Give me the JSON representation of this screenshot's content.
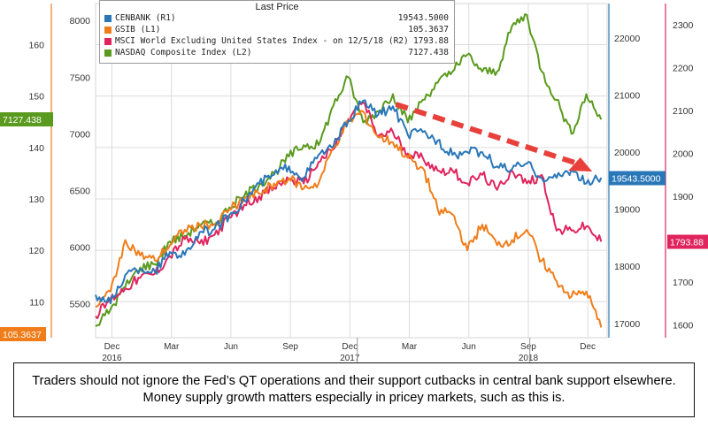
{
  "chart_data": {
    "type": "line",
    "legend_title": "Last Price",
    "legend_position": "top-left",
    "grid": true,
    "x_ticks": [
      {
        "month": "Dec",
        "year": "2016"
      },
      {
        "month": "Mar",
        "year": ""
      },
      {
        "month": "Jun",
        "year": ""
      },
      {
        "month": "Sep",
        "year": ""
      },
      {
        "month": "Dec",
        "year": "2017"
      },
      {
        "month": "Mar",
        "year": ""
      },
      {
        "month": "Jun",
        "year": ""
      },
      {
        "month": "Sep",
        "year": "2018"
      },
      {
        "month": "Dec",
        "year": ""
      }
    ],
    "axes": {
      "gsib_left": {
        "ticks": [
          "160",
          "150",
          "140",
          "130",
          "120",
          "110"
        ],
        "color": "#f07d1a",
        "ylim": [
          103,
          168
        ]
      },
      "nasdaq_left": {
        "ticks": [
          "8000",
          "7500",
          "7000",
          "6500",
          "6000",
          "5500"
        ],
        "color": "#111111",
        "ylim": [
          5200,
          8150
        ]
      },
      "cenbank_right": {
        "ticks": [
          "22000",
          "21000",
          "20000",
          "19000",
          "18000",
          "17000"
        ],
        "color": "#2a77b8",
        "ylim": [
          16750,
          22600
        ]
      },
      "msci_right": {
        "ticks": [
          "2300",
          "2200",
          "2100",
          "2000",
          "1900",
          "1800",
          "1700",
          "1600"
        ],
        "color": "#e0245e",
        "ylim": [
          1570,
          2350
        ]
      }
    },
    "series": [
      {
        "name": "CENBANK",
        "axis": "(R1)",
        "last": "19543.5000",
        "color": "#2a77b8",
        "points": [
          [
            0,
            17500
          ],
          [
            0.5,
            17350
          ],
          [
            1,
            17850
          ],
          [
            1.5,
            17950
          ],
          [
            2,
            17900
          ],
          [
            2.5,
            18250
          ],
          [
            3,
            18200
          ],
          [
            3.5,
            18600
          ],
          [
            4,
            18650
          ],
          [
            4.5,
            18900
          ],
          [
            5,
            19150
          ],
          [
            5.5,
            19450
          ],
          [
            6,
            19600
          ],
          [
            6.5,
            19750
          ],
          [
            7,
            19550
          ],
          [
            7.5,
            19950
          ],
          [
            8,
            20100
          ],
          [
            8.5,
            20550
          ],
          [
            9,
            20900
          ],
          [
            9.5,
            20650
          ],
          [
            10,
            20800
          ],
          [
            10.5,
            20300
          ],
          [
            11,
            20350
          ],
          [
            11.5,
            20200
          ],
          [
            12,
            19950
          ],
          [
            12.5,
            20000
          ],
          [
            13,
            20000
          ],
          [
            13.5,
            19750
          ],
          [
            14,
            19700
          ],
          [
            14.5,
            19800
          ],
          [
            15,
            19550
          ],
          [
            15.5,
            19550
          ],
          [
            16,
            19700
          ],
          [
            16.5,
            19450
          ],
          [
            17,
            19550
          ]
        ]
      },
      {
        "name": "GSIB",
        "axis": "(L1)",
        "last": "105.3637",
        "color": "#f07d1a",
        "points": [
          [
            0,
            109
          ],
          [
            0.5,
            112
          ],
          [
            1,
            122
          ],
          [
            1.5,
            119
          ],
          [
            2,
            118
          ],
          [
            2.5,
            121
          ],
          [
            3,
            124
          ],
          [
            3.5,
            125
          ],
          [
            4,
            125
          ],
          [
            4.5,
            128
          ],
          [
            5,
            130
          ],
          [
            5.5,
            131
          ],
          [
            6,
            133
          ],
          [
            6.5,
            134
          ],
          [
            7,
            132
          ],
          [
            7.5,
            133
          ],
          [
            8,
            140
          ],
          [
            8.5,
            145
          ],
          [
            9,
            147
          ],
          [
            9.5,
            142
          ],
          [
            10,
            141
          ],
          [
            10.5,
            138
          ],
          [
            11,
            136
          ],
          [
            11.5,
            128
          ],
          [
            12,
            127
          ],
          [
            12.5,
            120
          ],
          [
            13,
            125
          ],
          [
            13.5,
            121
          ],
          [
            14,
            122
          ],
          [
            14.5,
            124
          ],
          [
            15,
            118
          ],
          [
            15.5,
            114
          ],
          [
            16,
            111
          ],
          [
            16.5,
            112
          ],
          [
            17,
            105
          ]
        ]
      },
      {
        "name": "MSCI World Excluding United States Index - on 12/5/18",
        "axis": "(R2)",
        "last": "1793.88",
        "color": "#e0245e",
        "points": [
          [
            0,
            1620
          ],
          [
            0.5,
            1660
          ],
          [
            1,
            1685
          ],
          [
            1.5,
            1710
          ],
          [
            2,
            1720
          ],
          [
            2.5,
            1760
          ],
          [
            3,
            1800
          ],
          [
            3.5,
            1790
          ],
          [
            4,
            1810
          ],
          [
            4.5,
            1850
          ],
          [
            5,
            1880
          ],
          [
            5.5,
            1900
          ],
          [
            6,
            1920
          ],
          [
            6.5,
            1940
          ],
          [
            7,
            1930
          ],
          [
            7.5,
            1980
          ],
          [
            8,
            2010
          ],
          [
            8.5,
            2080
          ],
          [
            9,
            2120
          ],
          [
            9.5,
            2040
          ],
          [
            10,
            2050
          ],
          [
            10.5,
            2000
          ],
          [
            11,
            1990
          ],
          [
            11.5,
            1960
          ],
          [
            12,
            1960
          ],
          [
            12.5,
            1930
          ],
          [
            13,
            1950
          ],
          [
            13.5,
            1915
          ],
          [
            14,
            1960
          ],
          [
            14.5,
            1930
          ],
          [
            15,
            1950
          ],
          [
            15.5,
            1820
          ],
          [
            16,
            1820
          ],
          [
            16.5,
            1830
          ],
          [
            17,
            1794
          ]
        ]
      },
      {
        "name": "NASDAQ Composite Index",
        "axis": "(L2)",
        "last": "7127.438",
        "color": "#5a9a1e",
        "points": [
          [
            0,
            5300
          ],
          [
            0.5,
            5450
          ],
          [
            1,
            5650
          ],
          [
            1.5,
            5820
          ],
          [
            2,
            5850
          ],
          [
            2.5,
            6050
          ],
          [
            3,
            6100
          ],
          [
            3.5,
            6200
          ],
          [
            4,
            6200
          ],
          [
            4.5,
            6350
          ],
          [
            5,
            6450
          ],
          [
            5.5,
            6550
          ],
          [
            6,
            6650
          ],
          [
            6.5,
            6800
          ],
          [
            7,
            6900
          ],
          [
            7.5,
            6900
          ],
          [
            8,
            7250
          ],
          [
            8.5,
            7500
          ],
          [
            9,
            7100
          ],
          [
            9.5,
            7200
          ],
          [
            10,
            7350
          ],
          [
            10.5,
            7100
          ],
          [
            11,
            7300
          ],
          [
            11.5,
            7450
          ],
          [
            12,
            7550
          ],
          [
            12.5,
            7700
          ],
          [
            13,
            7550
          ],
          [
            13.5,
            7550
          ],
          [
            14,
            7950
          ],
          [
            14.5,
            8050
          ],
          [
            15,
            7550
          ],
          [
            15.5,
            7300
          ],
          [
            16,
            7000
          ],
          [
            16.5,
            7350
          ],
          [
            17,
            7127
          ]
        ]
      }
    ]
  },
  "legend": {
    "title": "Last Price",
    "rows": [
      {
        "name": "CENBANK (R1)",
        "value": "19543.5000",
        "color": "#2a77b8"
      },
      {
        "name": "GSIB (L1)",
        "value": "105.3637",
        "color": "#f07d1a"
      },
      {
        "name": "MSCI World Excluding United States Index - on 12/5/18 (R2)",
        "value": "1793.88",
        "color": "#e0245e"
      },
      {
        "name": "NASDAQ Composite Index (L2)",
        "value": "7127.438",
        "color": "#5a9a1e"
      }
    ]
  },
  "last_labels": {
    "nasdaq": "7127.438",
    "gsib": "105.3637",
    "cenbank": "19543.5000",
    "msci": "1793.88"
  },
  "caption": "Traders should not ignore the Fed’s QT operations and their support cutbacks in central bank support elsewhere. Money supply growth matters especially in pricey markets, such as this is."
}
